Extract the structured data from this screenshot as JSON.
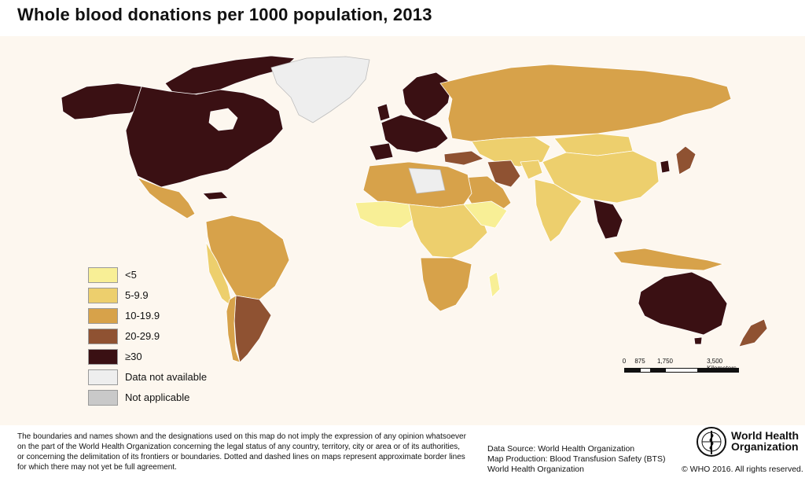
{
  "title": "Whole blood donations per 1000 population, 2013",
  "legend": [
    {
      "label": "<5",
      "color": "#f8ef96"
    },
    {
      "label": "5-9.9",
      "color": "#edcf6d"
    },
    {
      "label": "10-19.9",
      "color": "#d7a24a"
    },
    {
      "label": "20-29.9",
      "color": "#8f5232"
    },
    {
      "label": "≥30",
      "color": "#3a1013"
    },
    {
      "label": "Data not available",
      "color": "#eeeeee"
    },
    {
      "label": "Not applicable",
      "color": "#c9c9c9"
    }
  ],
  "scale_bar": {
    "ticks": [
      "0",
      "875",
      "1,750",
      "3,500 Kilometers"
    ]
  },
  "disclaimer": [
    "The boundaries and names shown and the designations used on this map do not imply the expression of any opinion whatsoever",
    "on the part of the World Health Organization concerning the legal status of any country, territory, city or area or of its authorities,",
    "or concerning the delimitation of its frontiers or boundaries. Dotted and dashed lines on maps represent approximate border lines",
    "for which there may not yet be full agreement."
  ],
  "credits": [
    "Data Source: World Health Organization",
    "Map Production: Blood Transfusion Safety (BTS)",
    "World Health Organization"
  ],
  "organization": [
    "World Health",
    "Organization"
  ],
  "copyright": "© WHO 2016. All rights reserved.",
  "colors": {
    "map_background": "#fdf7ef",
    "border": "#ffffff"
  },
  "icons": {
    "logo": "who-emblem-icon",
    "scale": "scale-bar-icon"
  }
}
